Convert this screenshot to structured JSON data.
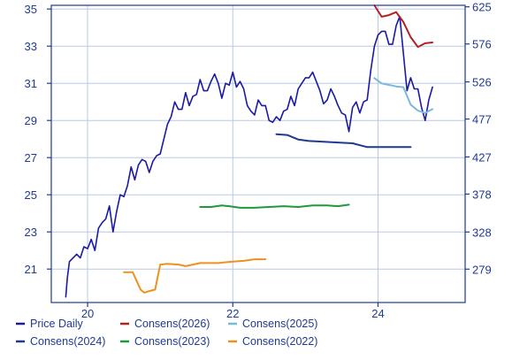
{
  "chart_data": {
    "type": "line",
    "title": "",
    "xlabel": "",
    "ylabel": "",
    "left_axis": {
      "ticks": [
        21,
        23,
        25,
        27,
        29,
        31,
        33,
        35
      ],
      "labels": [
        "21",
        "23",
        "25",
        "27",
        "29",
        "31",
        "33",
        "35"
      ],
      "ylim": [
        19.2,
        35.2
      ]
    },
    "right_axis": {
      "ticks": [
        279,
        328,
        378,
        427,
        477,
        526,
        576,
        625
      ],
      "labels": [
        "279",
        "328",
        "378",
        "427",
        "477",
        "526",
        "576",
        "625"
      ],
      "ylim": [
        235,
        627
      ]
    },
    "x_axis": {
      "ticks": [
        2020,
        2022,
        2024
      ],
      "labels": [
        "20",
        "22",
        "24"
      ],
      "xlim": [
        2019.5,
        2025.2
      ]
    },
    "grid": true,
    "legend_position": "bottom",
    "colors": {
      "frame": "#1f3a93",
      "grid": "#b9c9e4",
      "text": "#1f3a93"
    },
    "series": [
      {
        "name": "Price Daily",
        "color": "#1a1aa6",
        "axis": "left",
        "x": [
          2019.7,
          2019.72,
          2019.75,
          2019.8,
          2019.85,
          2019.9,
          2019.95,
          2020.0,
          2020.05,
          2020.1,
          2020.15,
          2020.2,
          2020.25,
          2020.3,
          2020.35,
          2020.4,
          2020.45,
          2020.5,
          2020.55,
          2020.6,
          2020.65,
          2020.7,
          2020.75,
          2020.8,
          2020.85,
          2020.9,
          2020.95,
          2021.0,
          2021.05,
          2021.1,
          2021.15,
          2021.2,
          2021.25,
          2021.3,
          2021.35,
          2021.4,
          2021.45,
          2021.5,
          2021.55,
          2021.6,
          2021.65,
          2021.7,
          2021.75,
          2021.8,
          2021.85,
          2021.9,
          2021.95,
          2022.0,
          2022.05,
          2022.1,
          2022.15,
          2022.2,
          2022.25,
          2022.3,
          2022.35,
          2022.4,
          2022.45,
          2022.5,
          2022.55,
          2022.6,
          2022.65,
          2022.7,
          2022.75,
          2022.8,
          2022.85,
          2022.9,
          2022.95,
          2023.0,
          2023.05,
          2023.1,
          2023.15,
          2023.2,
          2023.25,
          2023.3,
          2023.35,
          2023.4,
          2023.45,
          2023.5,
          2023.55,
          2023.6,
          2023.65,
          2023.7,
          2023.75,
          2023.8,
          2023.85,
          2023.9,
          2023.95,
          2024.0,
          2024.05,
          2024.1,
          2024.15,
          2024.2,
          2024.25,
          2024.3,
          2024.35,
          2024.4,
          2024.45,
          2024.5,
          2024.55,
          2024.6,
          2024.65,
          2024.7,
          2024.75
        ],
        "values": [
          19.5,
          20.5,
          21.4,
          21.6,
          21.8,
          21.6,
          22.2,
          22.1,
          22.6,
          22.0,
          23.2,
          23.5,
          23.7,
          24.4,
          23.0,
          24.1,
          25.0,
          24.9,
          25.5,
          26.5,
          25.8,
          26.6,
          26.9,
          26.8,
          26.2,
          26.8,
          27.1,
          27.2,
          28.0,
          28.8,
          29.2,
          30.0,
          29.6,
          29.6,
          30.5,
          29.8,
          30.3,
          30.4,
          31.2,
          30.6,
          30.6,
          31.1,
          31.5,
          31.0,
          30.2,
          31.0,
          30.9,
          31.6,
          30.8,
          31.1,
          30.7,
          29.8,
          29.5,
          29.3,
          30.1,
          29.8,
          29.8,
          29.0,
          28.9,
          29.2,
          29.0,
          29.5,
          29.6,
          30.3,
          29.8,
          30.7,
          31.0,
          31.3,
          31.3,
          31.6,
          31.1,
          30.6,
          29.9,
          30.1,
          30.7,
          30.3,
          29.8,
          29.4,
          29.3,
          28.4,
          29.7,
          30.0,
          29.4,
          30.0,
          30.1,
          31.7,
          33.0,
          33.6,
          33.8,
          33.8,
          33.1,
          33.1,
          34.1,
          34.6,
          32.6,
          30.6,
          31.3,
          30.7,
          30.7,
          29.7,
          29.0,
          30.1,
          30.8
        ]
      },
      {
        "name": "Consens(2026)",
        "color": "#b22222",
        "axis": "right",
        "x": [
          2023.95,
          2024.05,
          2024.15,
          2024.25,
          2024.35,
          2024.45,
          2024.55,
          2024.65,
          2024.75
        ],
        "values": [
          627,
          612,
          614,
          618,
          605,
          585,
          572,
          577,
          578
        ]
      },
      {
        "name": "Consens(2025)",
        "color": "#7ab8dd",
        "axis": "right",
        "x": [
          2023.95,
          2024.05,
          2024.15,
          2024.25,
          2024.35,
          2024.45,
          2024.55,
          2024.65,
          2024.75
        ],
        "values": [
          531,
          524,
          522,
          520,
          519,
          496,
          488,
          485,
          490
        ]
      },
      {
        "name": "Consens(2024)",
        "color": "#1f3a93",
        "axis": "right",
        "x": [
          2022.6,
          2022.75,
          2022.9,
          2023.05,
          2023.25,
          2023.45,
          2023.65,
          2023.85,
          2024.05,
          2024.25,
          2024.45
        ],
        "values": [
          457,
          456,
          450,
          448,
          447,
          446,
          445,
          440,
          440,
          440,
          440
        ]
      },
      {
        "name": "Consens(2023)",
        "color": "#1f9a3a",
        "axis": "right",
        "x": [
          2021.55,
          2021.7,
          2021.85,
          2021.95,
          2022.1,
          2022.3,
          2022.5,
          2022.7,
          2022.9,
          2023.1,
          2023.3,
          2023.45,
          2023.6
        ],
        "values": [
          361,
          361,
          363,
          362,
          360,
          360,
          361,
          362,
          361,
          363,
          363,
          362,
          364
        ]
      },
      {
        "name": "Consens(2022)",
        "color": "#f0901e",
        "axis": "right",
        "x": [
          2020.5,
          2020.62,
          2020.73,
          2020.78,
          2020.85,
          2020.93,
          2021.0,
          2021.1,
          2021.25,
          2021.35,
          2021.55,
          2021.8,
          2022.0,
          2022.15,
          2022.3,
          2022.45
        ],
        "values": [
          275,
          275,
          252,
          248,
          250,
          252,
          285,
          286,
          285,
          283,
          287,
          287,
          289,
          290,
          292,
          292
        ]
      }
    ]
  }
}
